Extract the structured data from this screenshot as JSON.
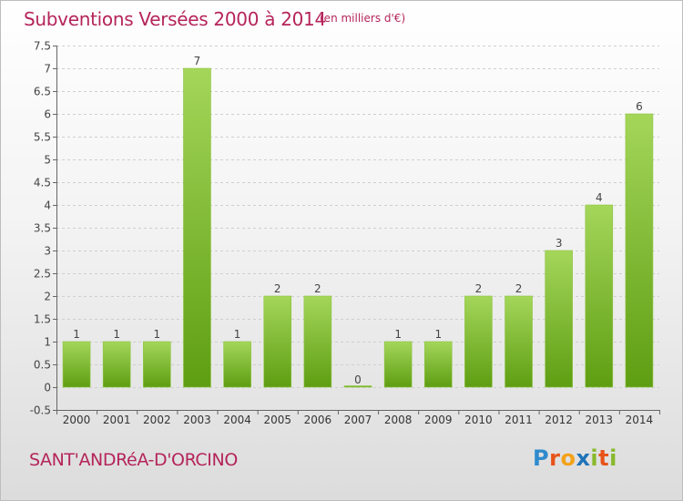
{
  "header": {
    "title": "Subventions Versées 2000 à 2014",
    "unit": "(en milliers d'€)"
  },
  "footer": {
    "commune": "SANT'ANDRéA-D'ORCINO",
    "logo": "Proxiti"
  },
  "colors": {
    "title": "#b5245a",
    "bar_light": "#a4d65a",
    "bar_dark": "#5e9e12",
    "grid": "#cfcfcf"
  },
  "chart_data": {
    "type": "bar",
    "title": "Subventions Versées 2000 à 2014",
    "subtitle": "(en milliers d'€)",
    "categories": [
      "2000",
      "2001",
      "2002",
      "2003",
      "2004",
      "2005",
      "2006",
      "2007",
      "2008",
      "2009",
      "2010",
      "2011",
      "2012",
      "2013",
      "2014"
    ],
    "values": [
      1,
      1,
      1,
      7,
      1,
      2,
      2,
      0,
      1,
      1,
      2,
      2,
      3,
      4,
      6
    ],
    "data_labels": [
      "1",
      "1",
      "1",
      "7",
      "1",
      "2",
      "2",
      "0",
      "1",
      "1",
      "2",
      "2",
      "3",
      "4",
      "6"
    ],
    "yticks": [
      "-0.5",
      "0",
      "0.5",
      "1",
      "1.5",
      "2",
      "2.5",
      "3",
      "3.5",
      "4",
      "4.5",
      "5",
      "5.5",
      "6",
      "6.5",
      "7",
      "7.5"
    ],
    "ylim": [
      -0.5,
      7.5
    ],
    "grid": "horizontal dashed",
    "legend": "none"
  }
}
